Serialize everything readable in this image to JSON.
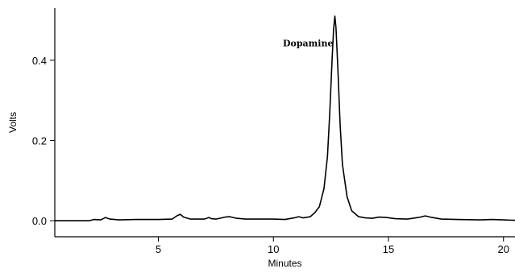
{
  "chart_data": {
    "type": "line",
    "title": "",
    "xlabel": "Minutes",
    "ylabel": "Volts",
    "xlim": [
      0.5,
      20.5
    ],
    "ylim": [
      -0.04,
      0.53
    ],
    "x_ticks": [
      5,
      10,
      15,
      20
    ],
    "x_tick_labels": [
      "5",
      "10",
      "15",
      "20"
    ],
    "y_ticks": [
      0.0,
      0.2,
      0.4
    ],
    "y_tick_labels": [
      "0.0",
      "0.2",
      "0.4"
    ],
    "grid": false,
    "legend": "none",
    "annotations": [
      {
        "text": "Dopamine",
        "x": 12.67,
        "y": 0.435
      }
    ],
    "series": [
      {
        "color": "#000000",
        "x": [
          0.5,
          2.0,
          2.2,
          2.5,
          2.7,
          2.9,
          3.3,
          4.0,
          5.0,
          5.6,
          5.8,
          5.95,
          6.1,
          6.4,
          7.0,
          7.2,
          7.3,
          7.5,
          7.9,
          8.1,
          8.4,
          8.8,
          9.5,
          10.0,
          10.5,
          10.9,
          11.1,
          11.3,
          11.6,
          11.8,
          12.0,
          12.2,
          12.35,
          12.45,
          12.55,
          12.62,
          12.67,
          12.72,
          12.8,
          12.9,
          13.0,
          13.2,
          13.4,
          13.7,
          14.0,
          14.3,
          14.6,
          14.9,
          15.3,
          15.8,
          16.3,
          16.6,
          16.9,
          17.3,
          18.0,
          19.0,
          19.5,
          20.0,
          20.5
        ],
        "y": [
          0.0,
          0.0,
          0.003,
          0.002,
          0.008,
          0.004,
          0.002,
          0.003,
          0.003,
          0.004,
          0.012,
          0.016,
          0.009,
          0.004,
          0.004,
          0.008,
          0.005,
          0.004,
          0.009,
          0.01,
          0.006,
          0.004,
          0.004,
          0.004,
          0.003,
          0.007,
          0.01,
          0.007,
          0.01,
          0.02,
          0.035,
          0.08,
          0.16,
          0.27,
          0.4,
          0.48,
          0.51,
          0.48,
          0.38,
          0.24,
          0.14,
          0.06,
          0.025,
          0.01,
          0.007,
          0.006,
          0.009,
          0.008,
          0.005,
          0.004,
          0.008,
          0.012,
          0.008,
          0.004,
          0.003,
          0.002,
          0.003,
          0.002,
          0.001
        ]
      }
    ]
  }
}
